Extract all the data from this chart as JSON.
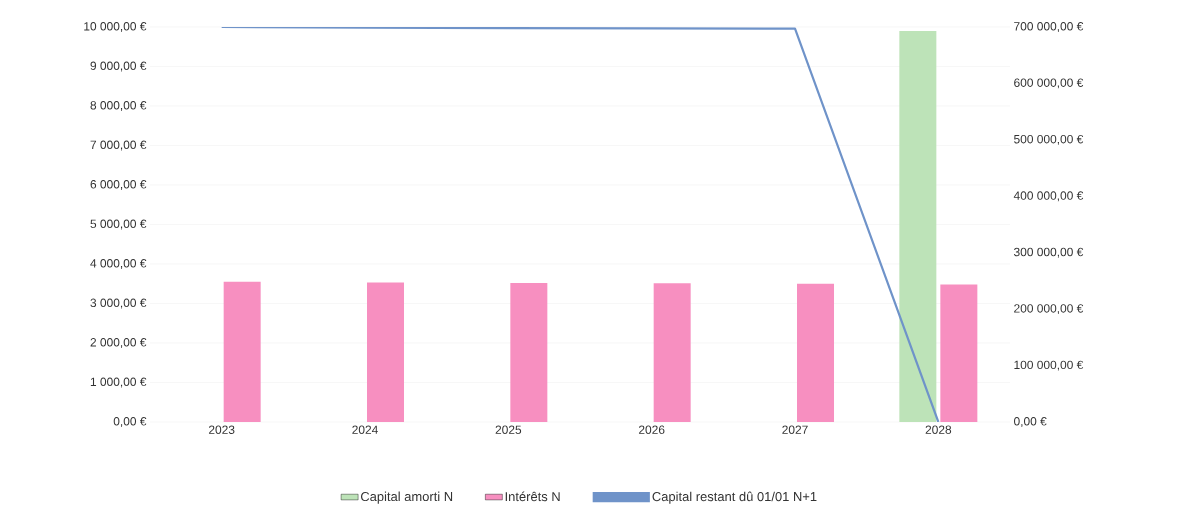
{
  "chart_data": {
    "type": "bar",
    "categories": [
      "2023",
      "2024",
      "2025",
      "2026",
      "2027",
      "2028"
    ],
    "series": [
      {
        "name": "Capital amorti N",
        "color": "#bde3b8",
        "values": [
          0,
          0,
          0,
          0,
          0,
          9900
        ]
      },
      {
        "name": "Intérêts N",
        "color": "#f78fc0",
        "values": [
          3550,
          3530,
          3520,
          3510,
          3500,
          3480
        ]
      },
      {
        "name": "Capital restant dû 01/01 N+1",
        "type": "line",
        "axis": "y2",
        "color": "#6f93c9",
        "values": [
          700000,
          699000,
          698000,
          697500,
          697000,
          0
        ]
      }
    ],
    "ylim": [
      0,
      10000
    ],
    "yticks": [
      {
        "value": 0,
        "label": "0,00 €"
      },
      {
        "value": 1000,
        "label": "1 000,00 €"
      },
      {
        "value": 2000,
        "label": "2 000,00 €"
      },
      {
        "value": 3000,
        "label": "3 000,00 €"
      },
      {
        "value": 4000,
        "label": "4 000,00 €"
      },
      {
        "value": 5000,
        "label": "5 000,00 €"
      },
      {
        "value": 6000,
        "label": "6 000,00 €"
      },
      {
        "value": 7000,
        "label": "7 000,00 €"
      },
      {
        "value": 8000,
        "label": "8 000,00 €"
      },
      {
        "value": 9000,
        "label": "9 000,00 €"
      },
      {
        "value": 10000,
        "label": "10 000,00 €"
      }
    ],
    "y2lim": [
      0,
      700000
    ],
    "y2ticks": [
      {
        "value": 0,
        "label": "0,00 €"
      },
      {
        "value": 100000,
        "label": "100 000,00 €"
      },
      {
        "value": 200000,
        "label": "200 000,00 €"
      },
      {
        "value": 300000,
        "label": "300 000,00 €"
      },
      {
        "value": 400000,
        "label": "400 000,00 €"
      },
      {
        "value": 500000,
        "label": "500 000,00 €"
      },
      {
        "value": 600000,
        "label": "600 000,00 €"
      },
      {
        "value": 700000,
        "label": "700 000,00 €"
      }
    ],
    "grid": "y",
    "legend": "bottom"
  }
}
